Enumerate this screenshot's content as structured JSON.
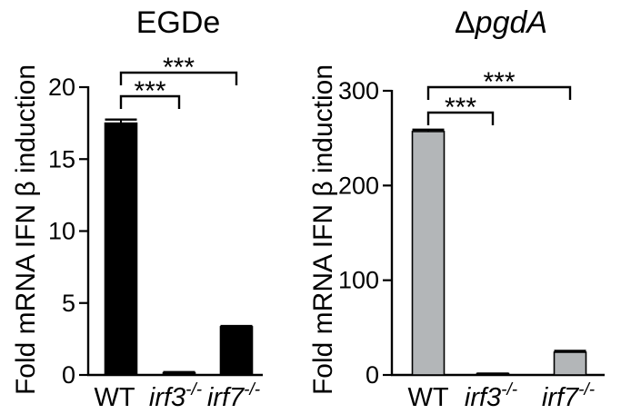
{
  "chart_data": [
    {
      "type": "bar",
      "title": "EGDe",
      "ylabel": "Fold mRNA IFN β induction",
      "categories": [
        "WT",
        "irf3",
        "irf7"
      ],
      "category_superscript": "-/-",
      "category_italic": [
        false,
        true,
        true
      ],
      "values": [
        17.5,
        0.15,
        3.35
      ],
      "errors": [
        0.25,
        0.05,
        0.05
      ],
      "ylim": [
        0,
        20
      ],
      "yticks": [
        0,
        5,
        10,
        15,
        20
      ],
      "bar_color": "#000000",
      "significance": [
        {
          "from": 0,
          "to": 1,
          "label": "***"
        },
        {
          "from": 0,
          "to": 2,
          "label": "***"
        }
      ]
    },
    {
      "type": "bar",
      "title": "ΔpgdA",
      "title_prefix": "Δ",
      "title_main": "pgdA",
      "ylabel": "Fold mRNA IFN β induction",
      "categories": [
        "WT",
        "irf3",
        "irf7"
      ],
      "category_superscript": "-/-",
      "category_italic": [
        false,
        true,
        true
      ],
      "values": [
        257,
        1,
        24
      ],
      "errors": [
        2,
        0.5,
        1.5
      ],
      "ylim": [
        0,
        300
      ],
      "yticks": [
        0,
        100,
        200,
        300
      ],
      "bar_color": "#b3b6b8",
      "significance": [
        {
          "from": 0,
          "to": 1,
          "label": "***"
        },
        {
          "from": 0,
          "to": 2,
          "label": "***"
        }
      ]
    }
  ]
}
